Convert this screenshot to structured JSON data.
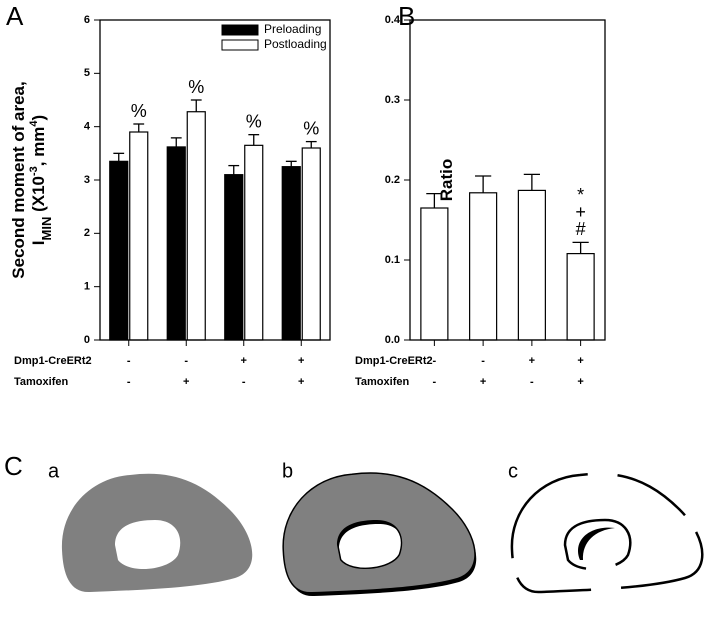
{
  "chart_data": [
    {
      "type": "bar",
      "panel_label": "A",
      "y_label": {
        "line1": "Second moment of area,",
        "line2": [
          {
            "text": "I"
          },
          {
            "text": "MIN",
            "sub": true
          },
          {
            "text": " (X10"
          },
          {
            "text": "-3",
            "sup": true
          },
          {
            "text": ", mm"
          },
          {
            "text": "4",
            "sup": true
          },
          {
            "text": ")"
          }
        ]
      },
      "categories": [
        null,
        null,
        null,
        null
      ],
      "series": [
        {
          "name": "Preloading",
          "color": "#000000",
          "values": [
            3.35,
            3.62,
            3.1,
            3.25
          ],
          "errors": [
            0.15,
            0.17,
            0.17,
            0.1
          ],
          "annotations": [
            null,
            null,
            null,
            null
          ]
        },
        {
          "name": "Postloading",
          "color": "#ffffff",
          "values": [
            3.9,
            4.28,
            3.65,
            3.6
          ],
          "errors": [
            0.15,
            0.22,
            0.2,
            0.12
          ],
          "annotations": [
            [
              "%"
            ],
            [
              "%"
            ],
            [
              "%"
            ],
            [
              "%"
            ]
          ]
        }
      ],
      "conditions": [
        {
          "name": "Dmp1-CreERt2",
          "values": [
            "-",
            "-",
            "+",
            "+"
          ]
        },
        {
          "name": "Tamoxifen",
          "values": [
            "-",
            "+",
            "-",
            "+"
          ]
        }
      ],
      "ylim": [
        0,
        6
      ],
      "yticks": [
        0,
        1,
        2,
        3,
        4,
        5,
        6
      ],
      "legend": "upper-right"
    },
    {
      "type": "bar",
      "panel_label": "B",
      "y_label": {
        "line1": "Ratio"
      },
      "categories": [
        null,
        null,
        null,
        null
      ],
      "series": [
        {
          "color": "#ffffff",
          "values": [
            0.165,
            0.184,
            0.187,
            0.108
          ],
          "errors": [
            0.018,
            0.021,
            0.02,
            0.014
          ],
          "annotations": [
            null,
            null,
            null,
            [
              "*",
              "+",
              "#"
            ]
          ]
        }
      ],
      "conditions": [
        {
          "name": "Dmp1-CreERt2",
          "values": [
            "-",
            "-",
            "+",
            "+"
          ]
        },
        {
          "name": "Tamoxifen",
          "values": [
            "-",
            "+",
            "-",
            "+"
          ]
        }
      ],
      "ylim": [
        0,
        0.4
      ],
      "yticks": [
        {
          "value": 0,
          "label": "0.0"
        },
        0.1,
        0.2,
        0.3,
        0.4
      ]
    }
  ],
  "panel_c": {
    "label": "C",
    "sublabels": [
      "a",
      "b",
      "c"
    ]
  }
}
